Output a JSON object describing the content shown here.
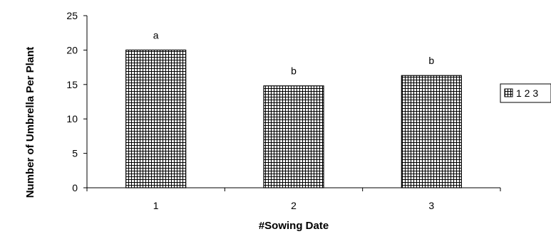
{
  "chart_data": {
    "type": "bar",
    "categories": [
      "1",
      "2",
      "3"
    ],
    "values": [
      20,
      14.8,
      16.3
    ],
    "data_labels": [
      "a",
      "b",
      "b"
    ],
    "title": "",
    "xlabel": "#Sowing Date",
    "ylabel": "Number of Umbrella Per Plant",
    "ylim": [
      0,
      25
    ],
    "yticks": [
      "0",
      "5",
      "10",
      "15",
      "20",
      "25"
    ],
    "grid": false,
    "legend": {
      "position": "right",
      "entry": "1 2 3"
    },
    "bar_pattern": "grid-hatch",
    "colors": {
      "bar_fill": "#ffffff",
      "bar_pattern": "#000000",
      "axis": "#000000"
    }
  }
}
